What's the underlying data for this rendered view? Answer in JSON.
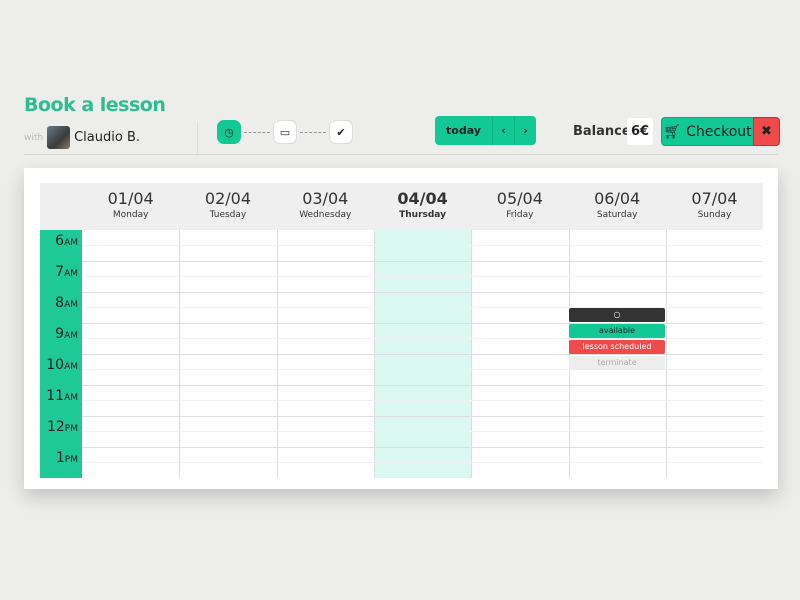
{
  "header": {
    "title": "Book a lesson",
    "with_label": "with",
    "teacher": "Claudio B."
  },
  "steps": [
    {
      "icon": "clock-icon",
      "active": true
    },
    {
      "icon": "credit-card-icon",
      "active": false
    },
    {
      "icon": "check-icon",
      "active": false
    }
  ],
  "nav": {
    "today": "today",
    "prev": "‹",
    "next": "›"
  },
  "balance": {
    "label": "Balance:",
    "value": "6€"
  },
  "checkout": {
    "label": "Checkout",
    "cancel": "✖"
  },
  "days": [
    {
      "date": "01/04",
      "name": "Monday"
    },
    {
      "date": "02/04",
      "name": "Tuesday"
    },
    {
      "date": "03/04",
      "name": "Wednesday"
    },
    {
      "date": "04/04",
      "name": "Thursday",
      "today": true
    },
    {
      "date": "05/04",
      "name": "Friday"
    },
    {
      "date": "06/04",
      "name": "Saturday"
    },
    {
      "date": "07/04",
      "name": "Sunday"
    }
  ],
  "hours": [
    {
      "h": "6",
      "ap": "AM"
    },
    {
      "h": "7",
      "ap": "AM"
    },
    {
      "h": "8",
      "ap": "AM"
    },
    {
      "h": "9",
      "ap": "AM"
    },
    {
      "h": "10",
      "ap": "AM"
    },
    {
      "h": "11",
      "ap": "AM"
    },
    {
      "h": "12",
      "ap": "PM"
    },
    {
      "h": "1",
      "ap": "PM"
    }
  ],
  "event_menu": {
    "day": "Saturday",
    "options": [
      "available",
      "lesson scheduled",
      "terminate"
    ]
  },
  "colors": {
    "accent": "#12c894",
    "danger": "#ef4b4b",
    "today_bg": "#dcf9f1"
  }
}
